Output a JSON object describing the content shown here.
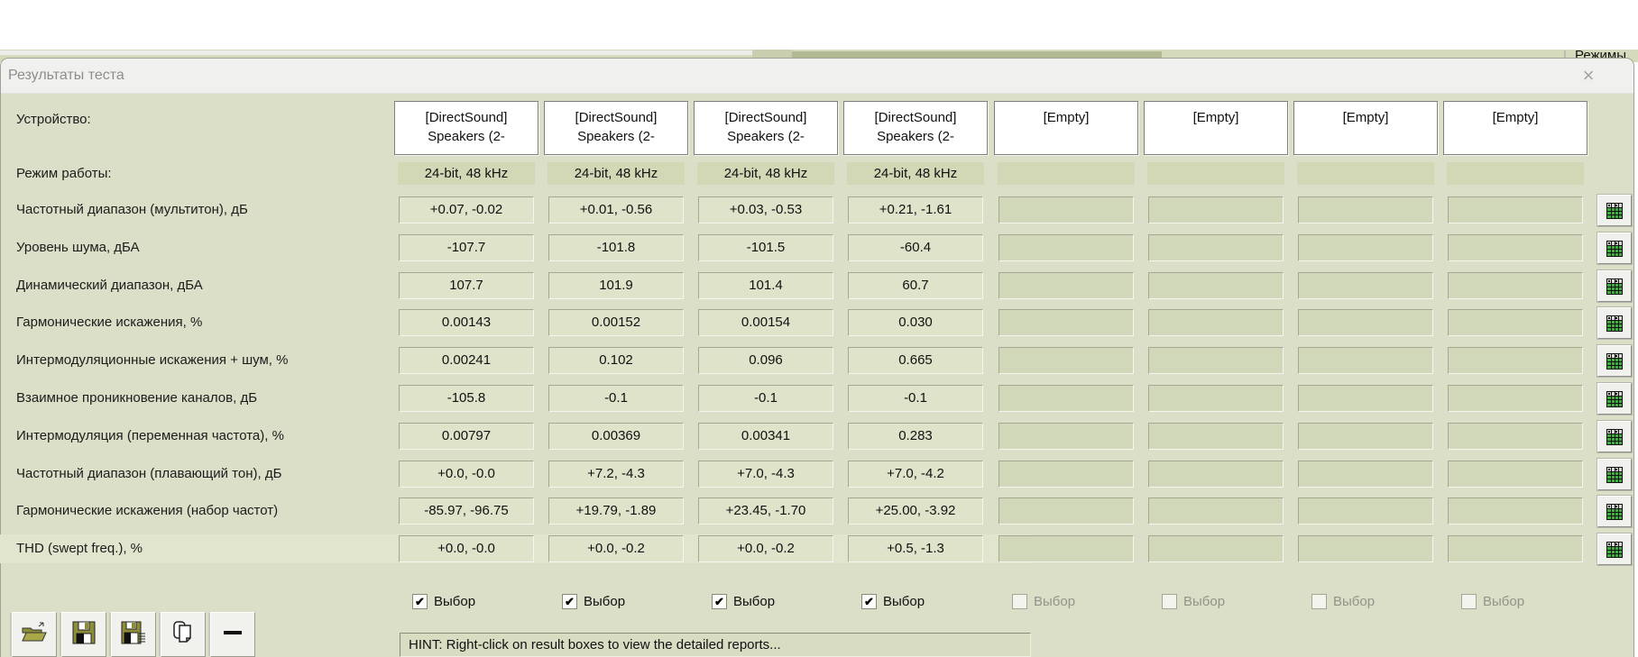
{
  "background": {
    "menu_label": "Режимы"
  },
  "dialog": {
    "title": "Результаты теста",
    "close_glyph": "×"
  },
  "table": {
    "device_label": "Устройство:",
    "mode_label": "Режим работы:",
    "row_labels": [
      "Частотный диапазон (мультитон), дБ",
      "Уровень шума, дБА",
      "Динамический диапазон, дБА",
      "Гармонические искажения, %",
      "Интермодуляционные искажения + шум, %",
      "Взаимное проникновение каналов, дБ",
      "Интермодуляция (переменная частота), %",
      "Частотный диапазон (плавающий тон), дБ",
      "Гармонические искажения (набор частот)",
      "THD (swept freq.), %"
    ],
    "checkbox_label": "Выбор",
    "columns": [
      {
        "device_line1": "[DirectSound]",
        "device_line2": "Speakers (2-",
        "mode": "24-bit, 48 kHz",
        "selected": true,
        "values": [
          "+0.07, -0.02",
          "-107.7",
          "107.7",
          "0.00143",
          "0.00241",
          "-105.8",
          "0.00797",
          "+0.0, -0.0",
          "-85.97, -96.75",
          "+0.0, -0.0"
        ]
      },
      {
        "device_line1": "[DirectSound]",
        "device_line2": "Speakers (2-",
        "mode": "24-bit, 48 kHz",
        "selected": true,
        "values": [
          "+0.01, -0.56",
          "-101.8",
          "101.9",
          "0.00152",
          "0.102",
          "-0.1",
          "0.00369",
          "+7.2, -4.3",
          "+19.79, -1.89",
          "+0.0, -0.2"
        ]
      },
      {
        "device_line1": "[DirectSound]",
        "device_line2": "Speakers (2-",
        "mode": "24-bit, 48 kHz",
        "selected": true,
        "values": [
          "+0.03, -0.53",
          "-101.5",
          "101.4",
          "0.00154",
          "0.096",
          "-0.1",
          "0.00341",
          "+7.0, -4.3",
          "+23.45, -1.70",
          "+0.0, -0.2"
        ]
      },
      {
        "device_line1": "[DirectSound]",
        "device_line2": "Speakers (2-",
        "mode": "24-bit, 48 kHz",
        "selected": true,
        "values": [
          "+0.21, -1.61",
          "-60.4",
          "60.7",
          "0.030",
          "0.665",
          "-0.1",
          "0.283",
          "+7.0, -4.2",
          "+25.00, -3.92",
          "+0.5, -1.3"
        ]
      },
      {
        "device_line1": "[Empty]",
        "device_line2": "",
        "mode": "",
        "selected": false,
        "values": [
          "",
          "",
          "",
          "",
          "",
          "",
          "",
          "",
          "",
          ""
        ]
      },
      {
        "device_line1": "[Empty]",
        "device_line2": "",
        "mode": "",
        "selected": false,
        "values": [
          "",
          "",
          "",
          "",
          "",
          "",
          "",
          "",
          "",
          ""
        ]
      },
      {
        "device_line1": "[Empty]",
        "device_line2": "",
        "mode": "",
        "selected": false,
        "values": [
          "",
          "",
          "",
          "",
          "",
          "",
          "",
          "",
          "",
          ""
        ]
      },
      {
        "device_line1": "[Empty]",
        "device_line2": "",
        "mode": "",
        "selected": false,
        "values": [
          "",
          "",
          "",
          "",
          "",
          "",
          "",
          "",
          "",
          ""
        ]
      }
    ]
  },
  "hint": "HINT: Right-click on result boxes to view the detailed reports...",
  "toolbar": {
    "buttons": [
      "folder-open-icon",
      "floppy-save-icon",
      "floppy-report-icon",
      "copy-pages-icon",
      "minus-icon"
    ]
  },
  "colors": {
    "dialog_body": "#dbdfc7",
    "filled_box": "#dfe3ca",
    "empty_box": "#d1d7b9",
    "olive_accent": "#b2ba93",
    "grid_icon_green": "#3fae3f",
    "toolbar_icon_olive": "#8e8e3a"
  }
}
